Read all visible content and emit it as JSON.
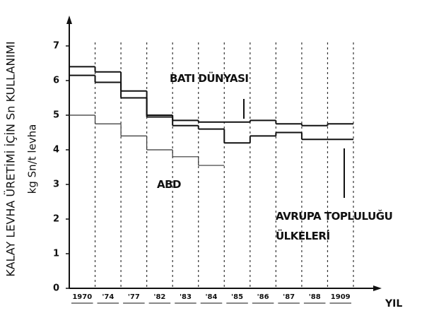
{
  "chart_data": {
    "type": "step",
    "ylabel": "KALAY LEVHA ÜRETİMİ İÇİN Sn KULLANIMI",
    "ylabel2": "kg Sn/t levha",
    "xlabel": "YIL",
    "categories": [
      "1970",
      "'74",
      "'77",
      "'82",
      "'83",
      "'84",
      "'85",
      "'86",
      "'87",
      "'88",
      "1909"
    ],
    "series": [
      {
        "name": "BATI DÜNYASI",
        "color": "#111111",
        "values": [
          6.4,
          6.25,
          5.7,
          5.0,
          4.85,
          4.8,
          4.8,
          4.85,
          4.75,
          4.7,
          4.75
        ]
      },
      {
        "name": "AVRUPA TOPLULUĞU ÜLKELERİ",
        "color": "#111111",
        "values": [
          6.15,
          5.95,
          5.5,
          4.95,
          4.7,
          4.6,
          4.2,
          4.4,
          4.5,
          4.3,
          4.3
        ]
      },
      {
        "name": "ABD",
        "color": "#333333",
        "values": [
          5.0,
          4.75,
          4.4,
          4.0,
          3.8,
          3.55,
          null,
          null,
          null,
          null,
          null
        ]
      }
    ],
    "ylim": [
      0,
      7
    ],
    "yticks": [
      0,
      1,
      2,
      3,
      4,
      5,
      6,
      7
    ],
    "grid": true
  }
}
